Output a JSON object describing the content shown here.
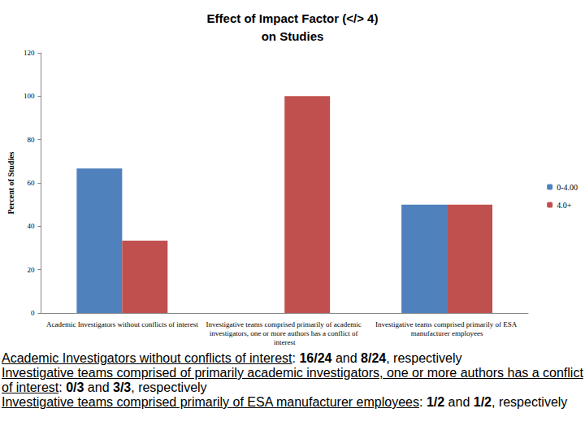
{
  "chart_data": {
    "type": "bar",
    "title": "Effect of Impact Factor (</> 4)\non Studies",
    "y_label": "Percent of Studies",
    "categories": [
      "Academic Investigators without conflicts of interest",
      "Investigative teams comprised primarily of academic investigators, one or more authors has a conflict of interest",
      "Investigative teams comprised primarily of ESA manufacturer employees"
    ],
    "series": [
      {
        "name": "0-4.00",
        "color": "#4F81BD",
        "values": [
          66.67,
          0,
          50
        ]
      },
      {
        "name": "4.0+",
        "color": "#C0504D",
        "values": [
          33.33,
          100,
          50
        ]
      }
    ],
    "ylim": [
      0,
      120
    ],
    "yticks": [
      0,
      20,
      40,
      60,
      80,
      100,
      120
    ],
    "grid": false,
    "legend": "right"
  },
  "annotations": [
    {
      "label": "Academic Investigators without conflicts of interest",
      "text": ": 16/24 and 8/24, respectively"
    },
    {
      "label": "Investigative teams comprised of primarily academic investigators, one or more authors has a conflict of interest",
      "text": ": 0/3 and 3/3, respectively"
    },
    {
      "label": "Investigative teams comprised primarily of ESA manufacturer employees",
      "text": ": 1/2 and 1/2, respectively"
    }
  ]
}
